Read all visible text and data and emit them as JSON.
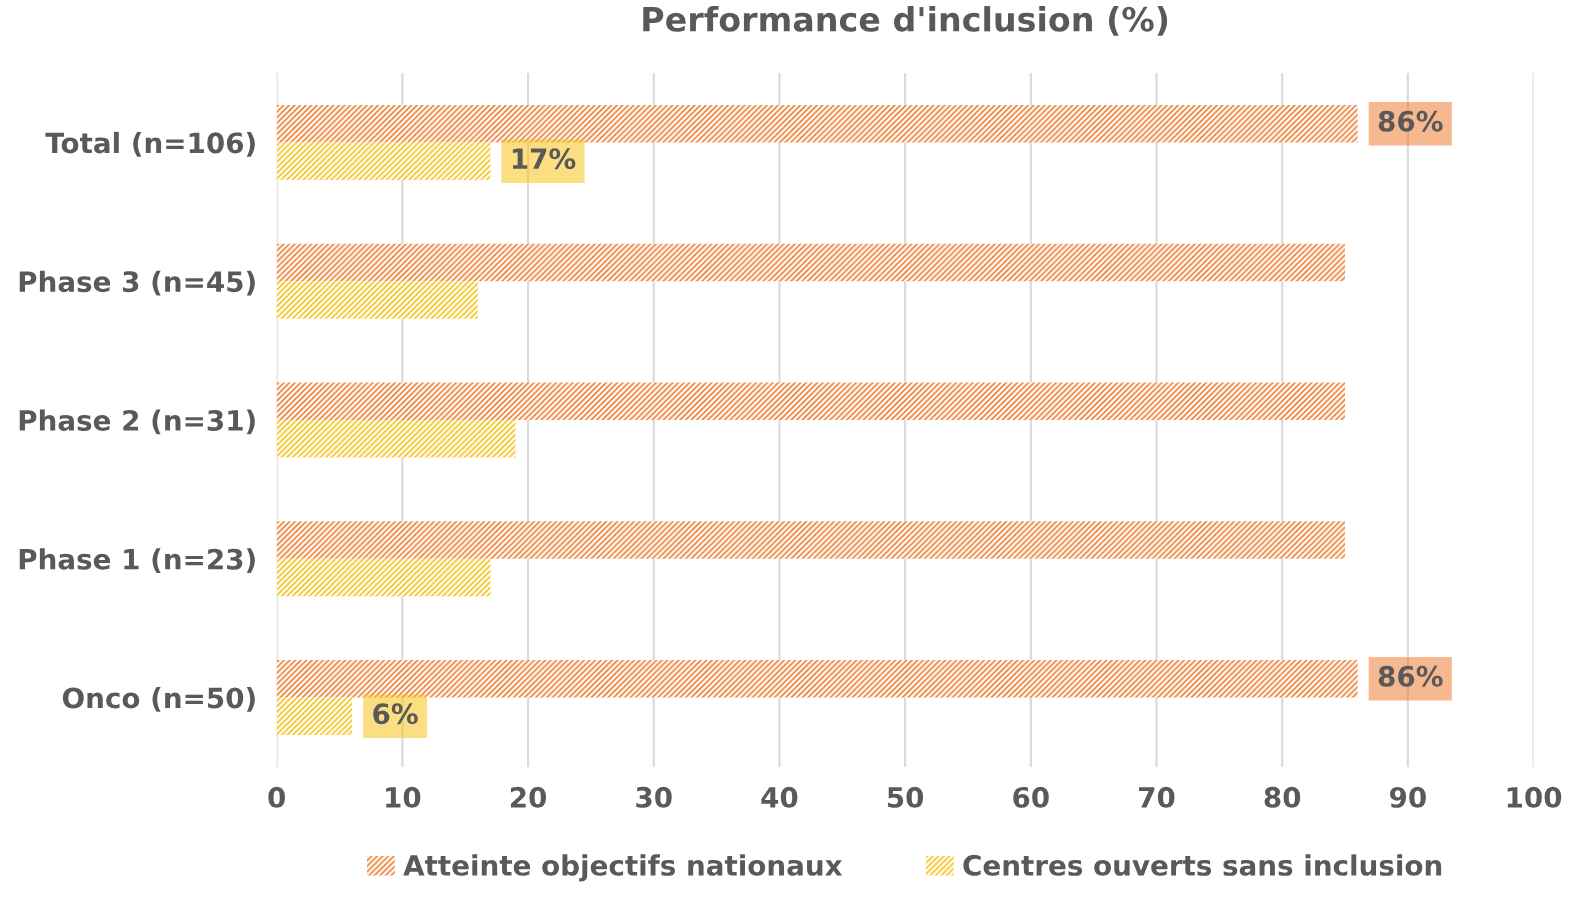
{
  "chart_data": {
    "type": "bar",
    "orientation": "horizontal",
    "title": "Performance d'inclusion (%)",
    "categories": [
      "Total (n=106)",
      "Phase 3 (n=45)",
      "Phase 2 (n=31)",
      "Phase 1 (n=23)",
      "Onco (n=50)"
    ],
    "series": [
      {
        "name": "Atteinte objectifs nationaux",
        "color": "#ee7d31",
        "values": [
          86,
          85,
          85,
          85,
          86
        ],
        "value_labels": [
          "86%",
          null,
          null,
          null,
          "86%"
        ]
      },
      {
        "name": "Centres ouverts sans inclusion",
        "color": "#f5c21a",
        "values": [
          17,
          16,
          19,
          17,
          6
        ],
        "value_labels": [
          "17%",
          null,
          null,
          null,
          "6%"
        ]
      }
    ],
    "xlim": [
      0,
      100
    ],
    "xticks": [
      0,
      10,
      20,
      30,
      40,
      50,
      60,
      70,
      80,
      90,
      100
    ],
    "grid": "x",
    "legend": "bottom"
  }
}
